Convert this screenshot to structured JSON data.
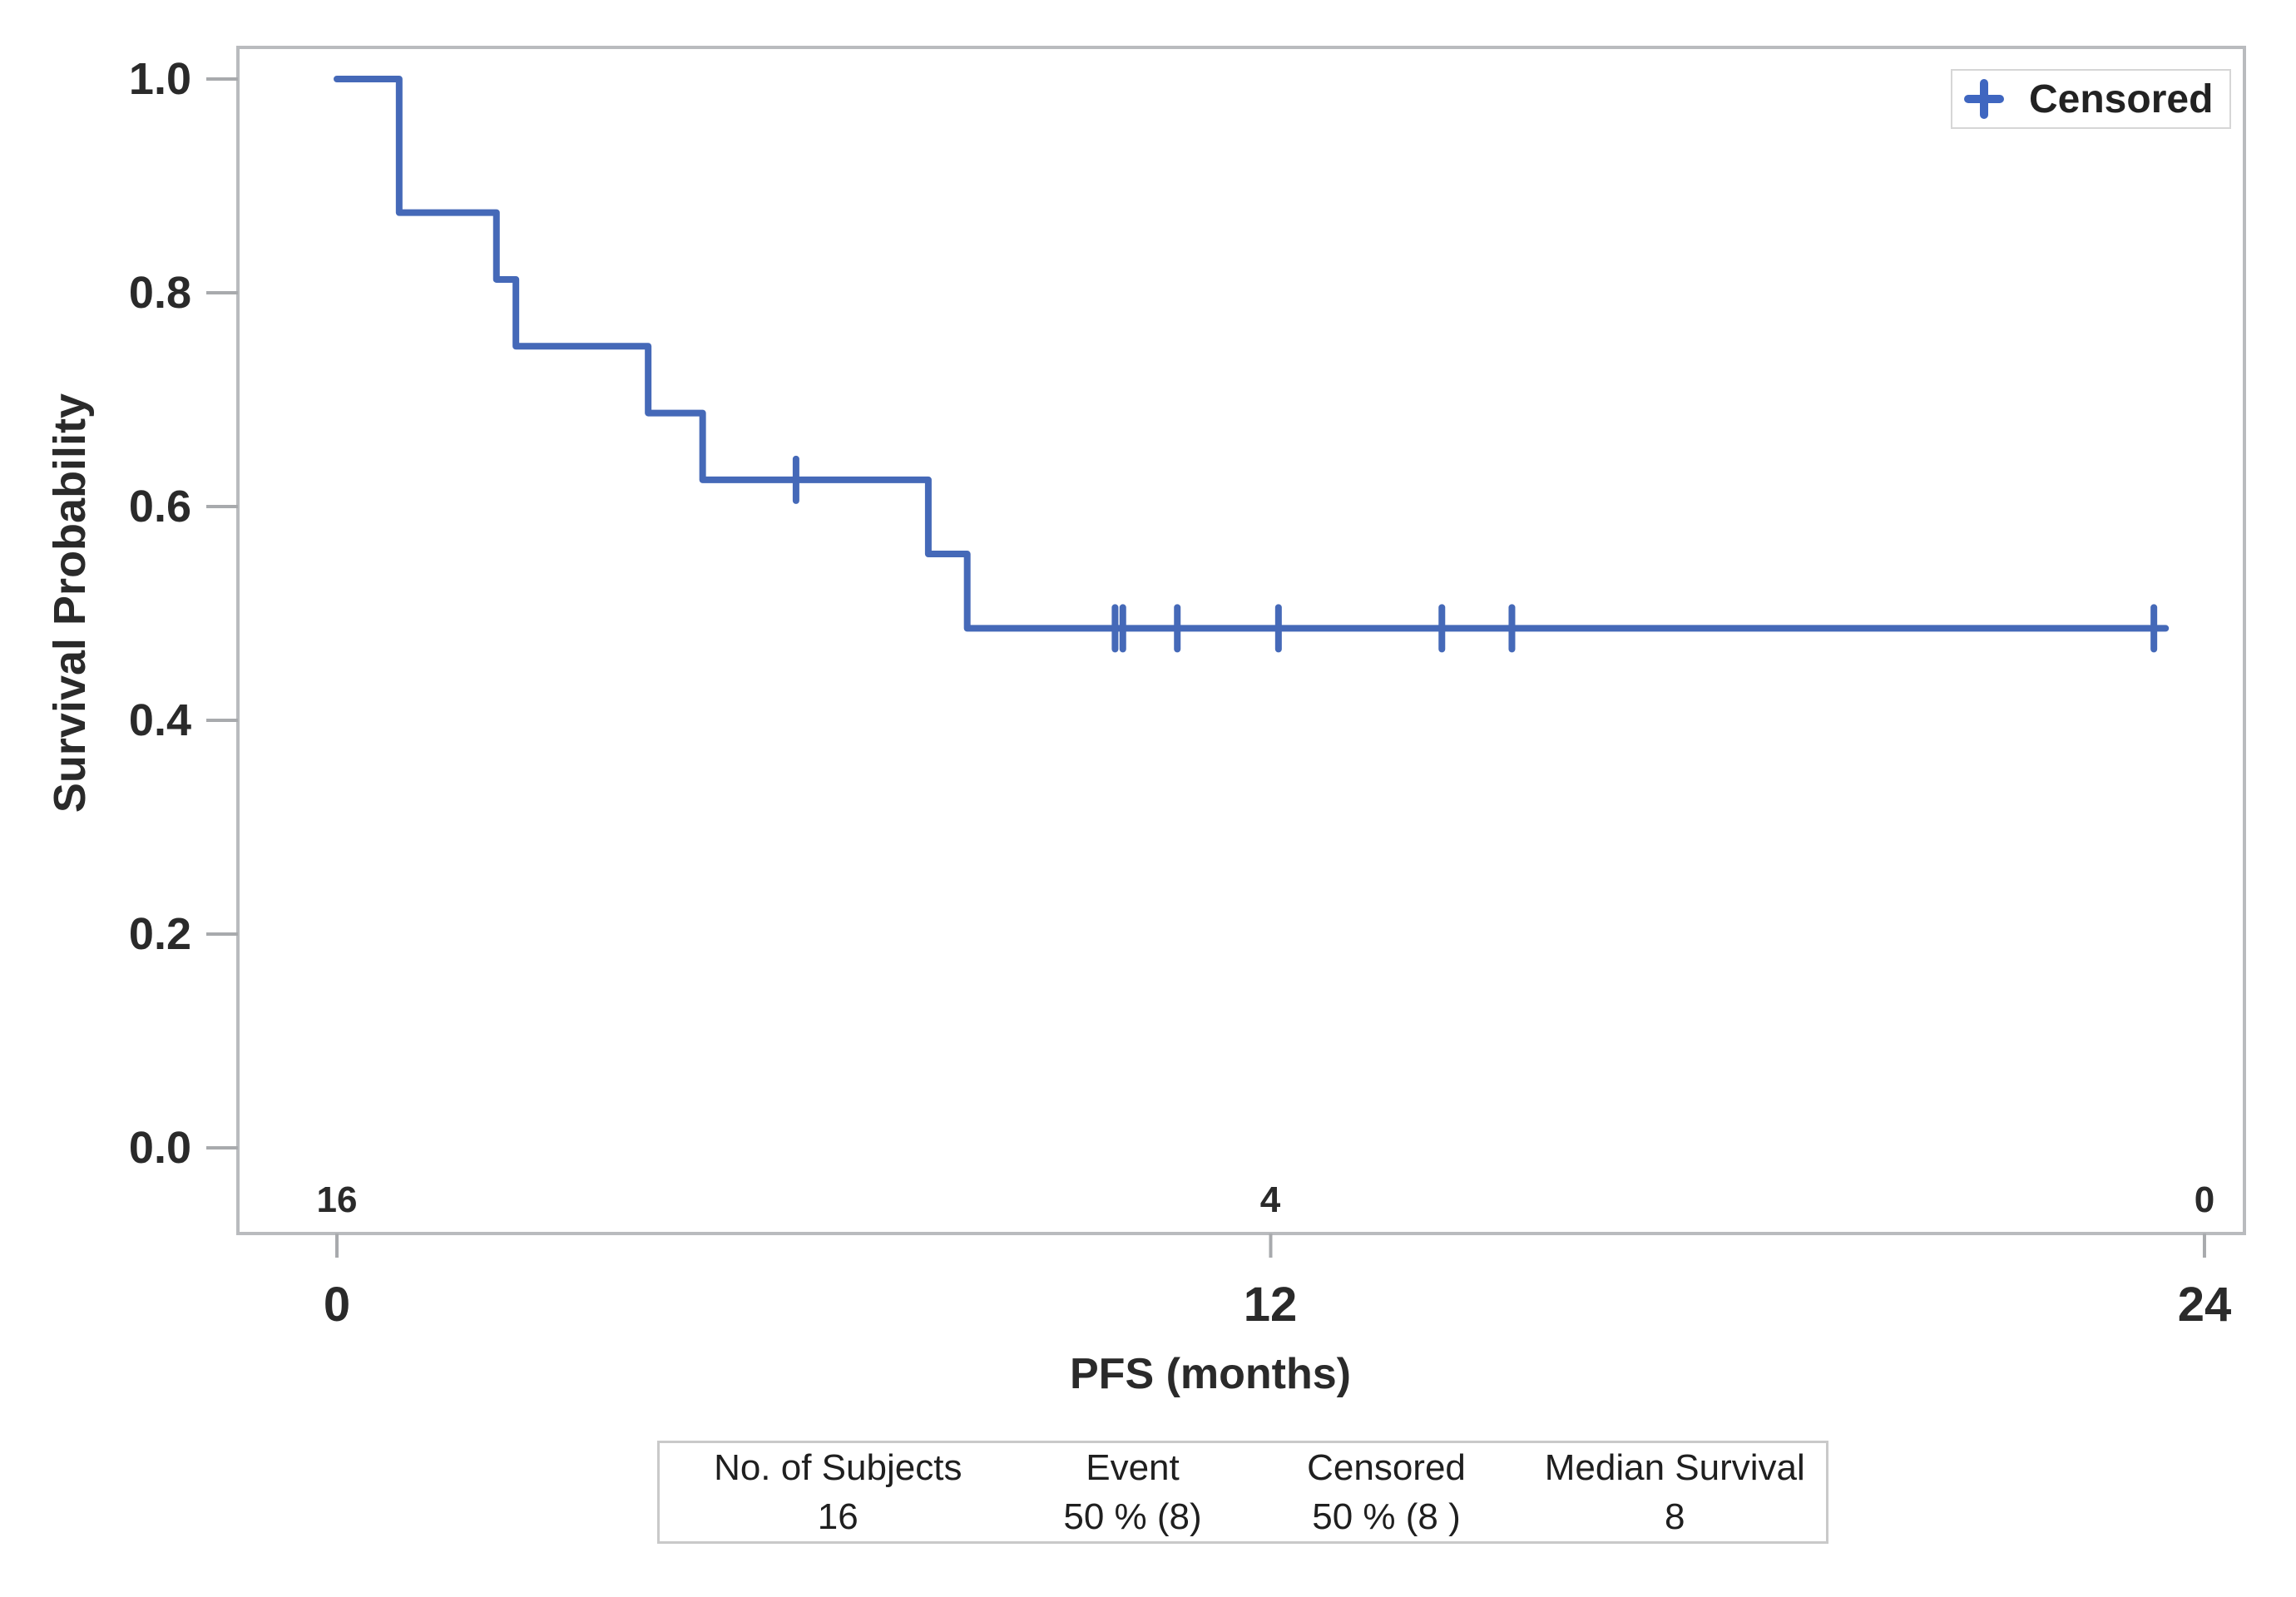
{
  "chart_data": {
    "type": "line",
    "subtype": "kaplan_meier_step",
    "title": "",
    "xlabel": "PFS (months)",
    "ylabel": "Survival Probability",
    "xlim": [
      0,
      24
    ],
    "ylim": [
      0.0,
      1.0
    ],
    "grid": false,
    "xticks": {
      "values": [
        0,
        12,
        24
      ],
      "labels": [
        "0",
        "12",
        "24"
      ]
    },
    "yticks": {
      "values": [
        1.0,
        0.8,
        0.6,
        0.4,
        0.2,
        0.0
      ],
      "labels": [
        "1.0",
        "0.8",
        "0.6",
        "0.4",
        "0.2",
        "0.0"
      ]
    },
    "legend": {
      "position": "top-right",
      "marker": "+",
      "label": "Censored"
    },
    "series": [
      {
        "name": "PFS",
        "color": "#4569b8",
        "step_points": [
          [
            0,
            1.0
          ],
          [
            0.8,
            0.875
          ],
          [
            2.05,
            0.8125
          ],
          [
            2.3,
            0.75
          ],
          [
            4.0,
            0.6875
          ],
          [
            4.7,
            0.625
          ],
          [
            7.6,
            0.5556
          ],
          [
            8.1,
            0.4861
          ]
        ],
        "curve_end_x": 23.5,
        "censored_marks": [
          [
            5.9,
            0.625
          ],
          [
            10.0,
            0.4861
          ],
          [
            10.1,
            0.4861
          ],
          [
            10.8,
            0.4861
          ],
          [
            12.1,
            0.4861
          ],
          [
            14.2,
            0.4861
          ],
          [
            15.1,
            0.4861
          ],
          [
            23.35,
            0.4861
          ]
        ]
      }
    ],
    "at_risk": {
      "times": [
        0,
        12,
        24
      ],
      "counts": [
        "16",
        "4",
        "0"
      ]
    }
  },
  "summary_table": {
    "headers": [
      "No. of Subjects",
      "Event",
      "Censored",
      "Median Survival"
    ],
    "row": [
      "16",
      "50 % (8)",
      "50 % (8 )",
      "8"
    ]
  },
  "colors": {
    "curve": "#4569b8",
    "frame": "#b9bbbe",
    "tick": "#a8aaad",
    "text": "#2a2a2a",
    "table_border": "#c9c9c9",
    "legend_border": "#d6d6d6"
  }
}
